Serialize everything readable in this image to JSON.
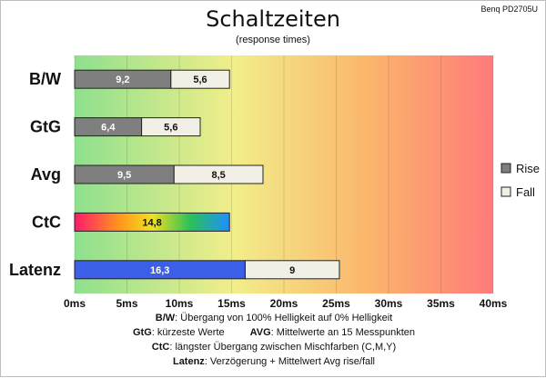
{
  "chart_data": {
    "type": "bar",
    "stacked": true,
    "orientation": "horizontal",
    "title": "Schaltzeiten",
    "subtitle": "(response times)",
    "model": "Benq PD2705U",
    "categories": [
      "B/W",
      "GtG",
      "Avg",
      "CtC",
      "Latenz"
    ],
    "series": [
      {
        "name": "Rise",
        "values": [
          9.2,
          6.4,
          9.5,
          14.8,
          16.3
        ],
        "labels": [
          "9,2",
          "6,4",
          "9,5",
          "14,8",
          "16,3"
        ]
      },
      {
        "name": "Fall",
        "values": [
          5.6,
          5.6,
          8.5,
          0,
          9
        ],
        "labels": [
          "5,6",
          "5,6",
          "8,5",
          "",
          "9"
        ]
      }
    ],
    "xlim": [
      0,
      40
    ],
    "xticks": [
      0,
      5,
      10,
      15,
      20,
      25,
      30,
      35,
      40
    ],
    "xtick_labels": [
      "0ms",
      "5ms",
      "10ms",
      "15ms",
      "20ms",
      "25ms",
      "30ms",
      "35ms",
      "40ms"
    ],
    "legend_position": "right",
    "background_gradient": [
      "#8ee08e",
      "#f2ee8a",
      "#fbb66c",
      "#ff7a7a"
    ],
    "colors": {
      "rise": "#7f7f7f",
      "fall": "#f2f0e6",
      "latenz_rise": "#3b5fe6",
      "ctc_gradient": [
        "#ff1a6b",
        "#ff9a1a",
        "#f0e020",
        "#2abf5a",
        "#1e90ff"
      ]
    }
  },
  "notes": [
    {
      "key": "B/W",
      "text": ":  Übergang von 100% Helligkeit auf 0% Helligkeit"
    },
    {
      "key": "GtG",
      "text": ": kürzeste  Werte",
      "key2": "AVG",
      "text2": ": Mittelwerte  an 15 Messpunkten"
    },
    {
      "key": "CtC",
      "text": ": längster Übergang  zwischen Mischfarben  (C,M,Y)"
    },
    {
      "key": "Latenz",
      "text": ": Verzögerung  + Mittelwert  Avg rise/fall"
    }
  ]
}
